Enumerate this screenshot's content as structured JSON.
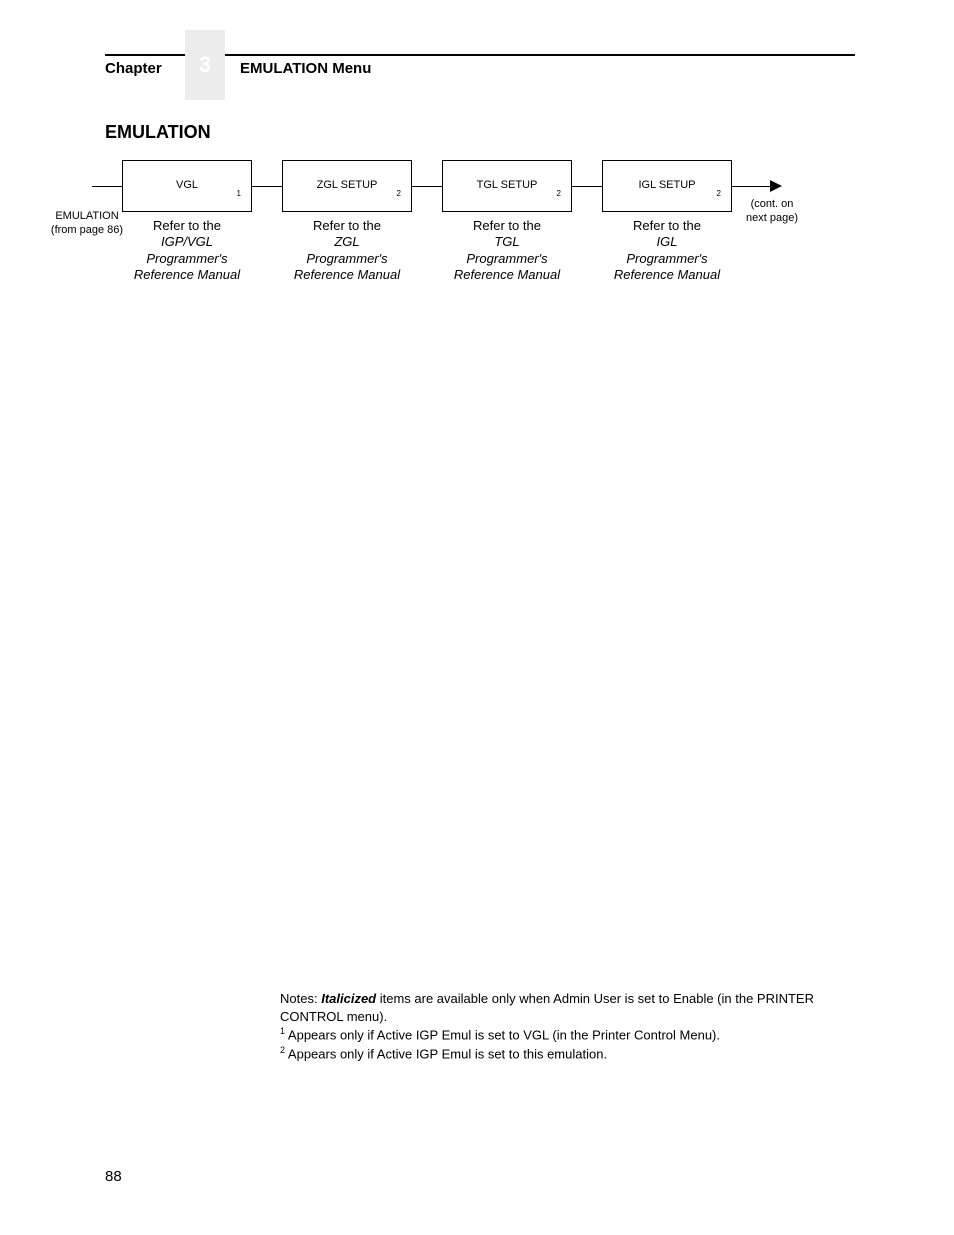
{
  "header": {
    "chapter_label": "Chapter",
    "chapter_number": "3",
    "title": "EMULATION Menu"
  },
  "section_title": "EMULATION",
  "diagram": {
    "entry_label": "EMULATION\n(from page 86)",
    "boxes": [
      {
        "label": "VGL",
        "sup": "1",
        "caption_prefix": "Refer to the",
        "caption_ital": "IGP/VGL\nProgrammer's\nReference Manual"
      },
      {
        "label": "ZGL SETUP",
        "sup": "2",
        "caption_prefix": "Refer to the",
        "caption_ital": "ZGL\nProgrammer's\nReference Manual"
      },
      {
        "label": "TGL SETUP",
        "sup": "2",
        "caption_prefix": "Refer to the",
        "caption_ital": "TGL\nProgrammer's\nReference Manual"
      },
      {
        "label": "IGL SETUP",
        "sup": "2",
        "caption_prefix": "Refer to the",
        "caption_ital": "IGL\nProgrammer's\nReference Manual"
      }
    ],
    "continue_label": "(cont. on\nnext page)"
  },
  "notes": {
    "prefix": "Notes:",
    "italic_lead": "Italicized",
    "body1": " items are available only when Admin User is set to Enable (in the PRINTER CONTROL menu).",
    "fn1": "Appears only if Active IGP Emul is set to VGL (in the Printer Control Menu).",
    "fn2": "Appears only if Active IGP Emul is set to this emulation."
  },
  "page_number": "88"
}
